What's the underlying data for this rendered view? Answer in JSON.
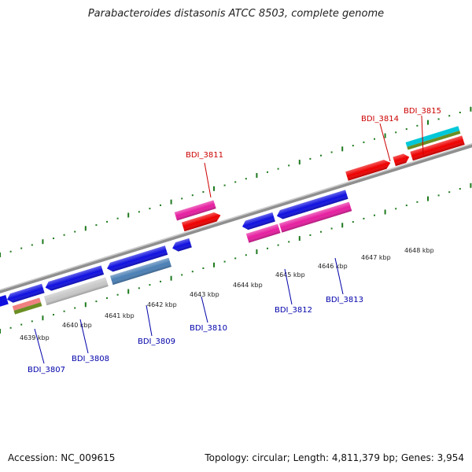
{
  "title": "Parabacteroides distasonis ATCC 8503, complete genome",
  "footer": {
    "accession": "Accession: NC_009615",
    "summary": "Topology: circular; Length: 4,811,379 bp; Genes: 3,954"
  },
  "colors": {
    "backbone": "#8f8f8f",
    "ticks": "#1f7a1f",
    "blue": "#1010e0",
    "red": "#ee0000",
    "pink": "#e61ea0",
    "gray": "#c8c8c8",
    "steel": "#4a7fb5",
    "salmon": "#f08080",
    "olive": "#6b8e23",
    "cyan": "#00c8d8",
    "label_top": "#cc0000",
    "label_bottom": "#0000aa"
  },
  "scale_labels": [
    "4639 kbp",
    "4640 kbp",
    "4641 kbp",
    "4642 kbp",
    "4643 kbp",
    "4644 kbp",
    "4645 kbp",
    "4646 kbp",
    "4647 kbp",
    "4648 kbp"
  ],
  "genes_top": [
    {
      "label": "BDI_3811"
    },
    {
      "label": "BDI_3814"
    },
    {
      "label": "BDI_3815"
    }
  ],
  "genes_bottom": [
    {
      "label": "BDI_3807"
    },
    {
      "label": "BDI_3808"
    },
    {
      "label": "BDI_3809"
    },
    {
      "label": "BDI_3810"
    },
    {
      "label": "BDI_3812"
    },
    {
      "label": "BDI_3813"
    }
  ]
}
